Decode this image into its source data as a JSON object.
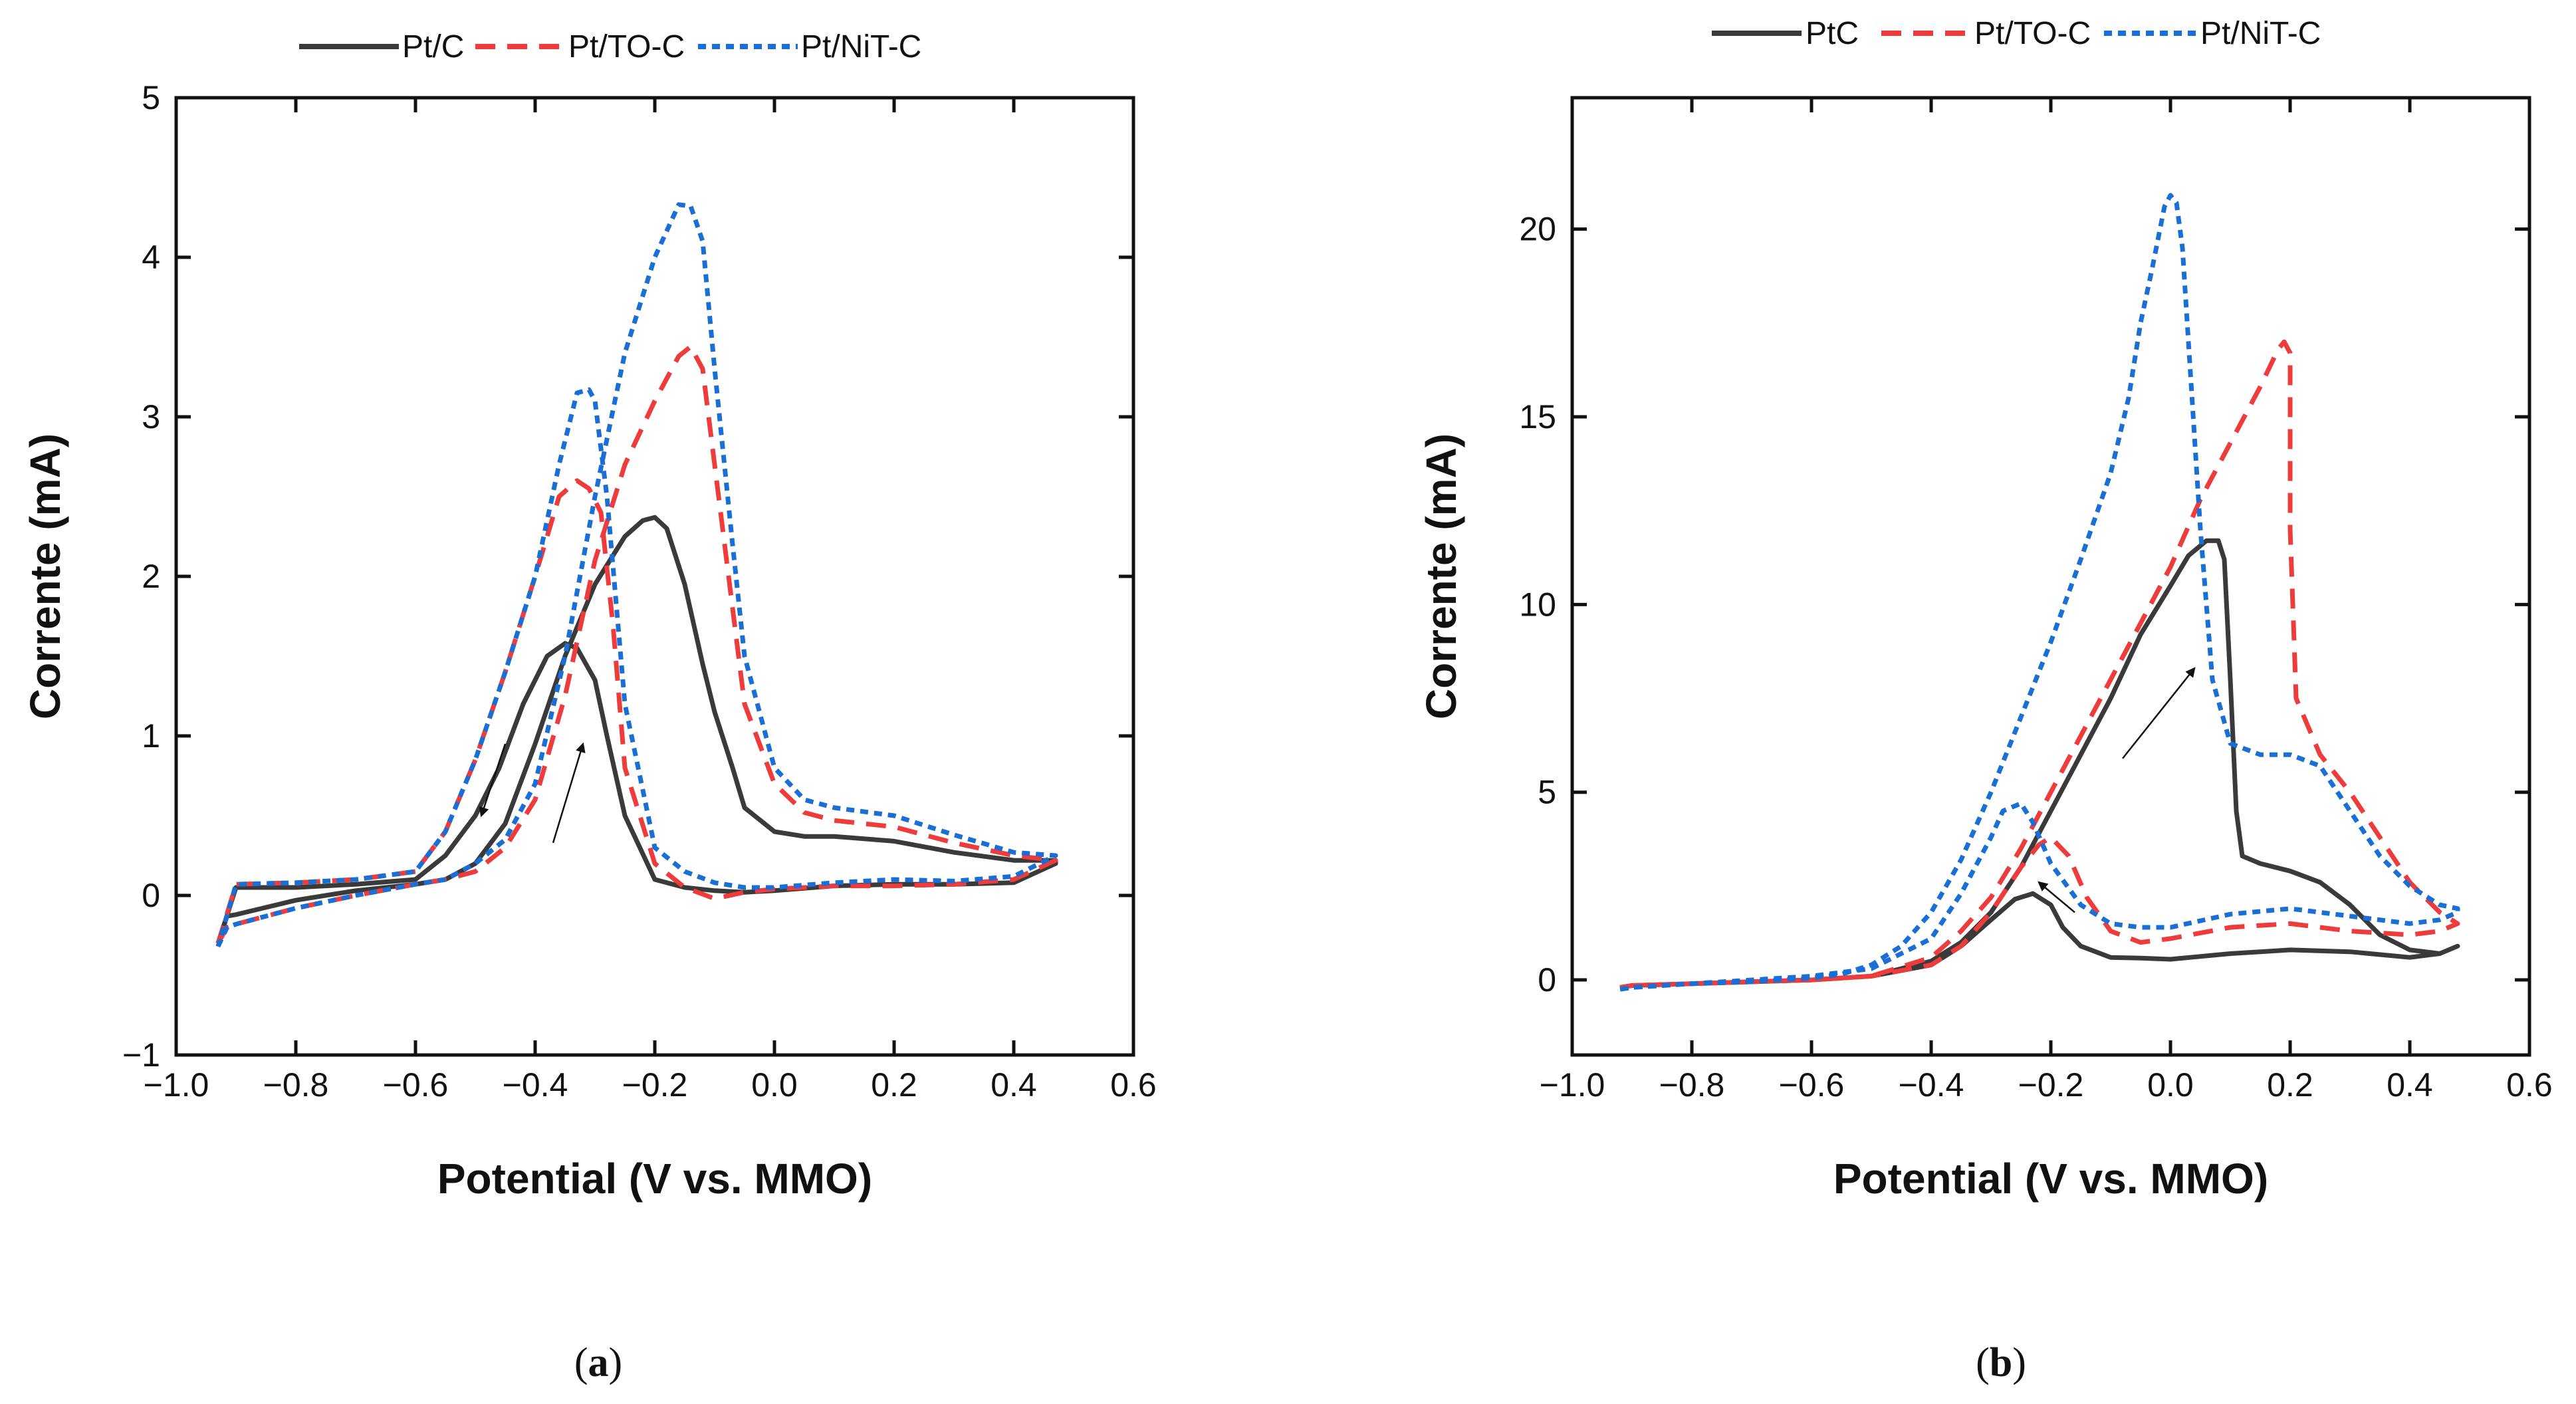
{
  "chart_data": [
    {
      "panel": "(a)",
      "panel_letter": "a",
      "type": "line",
      "title": "",
      "xlabel": "Potential (V vs. MMO)",
      "ylabel": "Corrente (mA)",
      "xlim": [
        -1.0,
        0.6
      ],
      "ylim": [
        -1,
        5
      ],
      "xticks": [
        -1.0,
        -0.8,
        -0.6,
        -0.4,
        -0.2,
        0.0,
        0.2,
        0.4,
        0.6
      ],
      "xtick_labels": [
        "−1.0",
        "−0.8",
        "−0.6",
        "−0.4",
        "−0.2",
        "0.0",
        "0.2",
        "0.4",
        "0.6"
      ],
      "yticks": [
        -1,
        0,
        1,
        2,
        3,
        4,
        5
      ],
      "ytick_labels": [
        "−1",
        "0",
        "1",
        "2",
        "3",
        "4",
        "5"
      ],
      "legend_position": "top",
      "series": [
        {
          "name": "Pt/C",
          "color": "#3a3a3a",
          "dash": "solid",
          "x": [
            -0.93,
            -0.915,
            -0.9,
            -0.8,
            -0.7,
            -0.6,
            -0.55,
            -0.5,
            -0.45,
            -0.4,
            -0.35,
            -0.3,
            -0.25,
            -0.22,
            -0.2,
            -0.18,
            -0.15,
            -0.12,
            -0.1,
            -0.07,
            -0.05,
            0.0,
            0.05,
            0.1,
            0.2,
            0.3,
            0.4,
            0.47,
            0.47,
            0.4,
            0.3,
            0.2,
            0.1,
            0.0,
            -0.05,
            -0.1,
            -0.15,
            -0.2,
            -0.25,
            -0.28,
            -0.3,
            -0.33,
            -0.35,
            -0.38,
            -0.42,
            -0.46,
            -0.5,
            -0.55,
            -0.6,
            -0.7,
            -0.8,
            -0.9,
            -0.93
          ],
          "y": [
            -0.3,
            -0.13,
            -0.12,
            -0.03,
            0.03,
            0.07,
            0.1,
            0.2,
            0.45,
            0.95,
            1.5,
            1.95,
            2.25,
            2.35,
            2.37,
            2.3,
            1.95,
            1.45,
            1.15,
            0.8,
            0.55,
            0.4,
            0.37,
            0.37,
            0.34,
            0.27,
            0.22,
            0.22,
            0.2,
            0.08,
            0.07,
            0.07,
            0.06,
            0.03,
            0.02,
            0.03,
            0.05,
            0.1,
            0.5,
            1.0,
            1.35,
            1.55,
            1.58,
            1.5,
            1.2,
            0.8,
            0.5,
            0.25,
            0.1,
            0.07,
            0.05,
            0.05,
            -0.3
          ]
        },
        {
          "name": "Pt/TO-C",
          "color": "#ee3b3b",
          "dash": "long",
          "x": [
            -0.93,
            -0.915,
            -0.9,
            -0.8,
            -0.7,
            -0.6,
            -0.55,
            -0.5,
            -0.45,
            -0.4,
            -0.35,
            -0.3,
            -0.25,
            -0.2,
            -0.16,
            -0.14,
            -0.12,
            -0.1,
            -0.07,
            -0.05,
            0.0,
            0.05,
            0.1,
            0.2,
            0.3,
            0.4,
            0.47,
            0.47,
            0.4,
            0.3,
            0.2,
            0.1,
            0.0,
            -0.05,
            -0.1,
            -0.15,
            -0.2,
            -0.25,
            -0.27,
            -0.29,
            -0.31,
            -0.33,
            -0.36,
            -0.4,
            -0.45,
            -0.5,
            -0.55,
            -0.6,
            -0.7,
            -0.8,
            -0.9,
            -0.93
          ],
          "y": [
            -0.3,
            -0.2,
            -0.18,
            -0.08,
            0.0,
            0.07,
            0.1,
            0.15,
            0.3,
            0.6,
            1.25,
            2.1,
            2.7,
            3.1,
            3.38,
            3.44,
            3.3,
            2.7,
            1.8,
            1.2,
            0.7,
            0.52,
            0.47,
            0.43,
            0.33,
            0.25,
            0.22,
            0.22,
            0.1,
            0.07,
            0.06,
            0.06,
            0.04,
            0.02,
            -0.02,
            0.05,
            0.2,
            0.8,
            1.7,
            2.4,
            2.55,
            2.6,
            2.5,
            2.0,
            1.4,
            0.85,
            0.4,
            0.15,
            0.1,
            0.08,
            0.07,
            -0.3
          ]
        },
        {
          "name": "Pt/NiT-C",
          "color": "#1a6fd6",
          "dash": "short",
          "x": [
            -0.93,
            -0.915,
            -0.9,
            -0.8,
            -0.7,
            -0.6,
            -0.55,
            -0.5,
            -0.45,
            -0.4,
            -0.35,
            -0.3,
            -0.25,
            -0.2,
            -0.16,
            -0.14,
            -0.12,
            -0.1,
            -0.07,
            -0.05,
            0.0,
            0.05,
            0.1,
            0.2,
            0.3,
            0.4,
            0.47,
            0.47,
            0.4,
            0.3,
            0.2,
            0.1,
            0.0,
            -0.05,
            -0.1,
            -0.15,
            -0.2,
            -0.25,
            -0.28,
            -0.3,
            -0.31,
            -0.33,
            -0.36,
            -0.4,
            -0.45,
            -0.5,
            -0.55,
            -0.6,
            -0.7,
            -0.8,
            -0.9,
            -0.93
          ],
          "y": [
            -0.32,
            -0.2,
            -0.18,
            -0.08,
            0.0,
            0.07,
            0.1,
            0.2,
            0.35,
            0.7,
            1.5,
            2.5,
            3.4,
            4.0,
            4.33,
            4.32,
            4.1,
            3.3,
            2.2,
            1.5,
            0.8,
            0.6,
            0.55,
            0.5,
            0.38,
            0.27,
            0.25,
            0.25,
            0.12,
            0.09,
            0.1,
            0.08,
            0.05,
            0.05,
            0.08,
            0.15,
            0.3,
            1.2,
            2.5,
            3.1,
            3.17,
            3.15,
            2.7,
            2.0,
            1.4,
            0.85,
            0.4,
            0.15,
            0.1,
            0.08,
            0.07,
            -0.32
          ]
        }
      ],
      "arrows": [
        {
          "direction": "forward",
          "from": [
            -0.37,
            0.33
          ],
          "to": [
            -0.32,
            0.95
          ]
        },
        {
          "direction": "reverse",
          "from": [
            -0.45,
            0.95
          ],
          "to": [
            -0.49,
            0.5
          ]
        }
      ]
    },
    {
      "panel": "(b)",
      "panel_letter": "b",
      "type": "line",
      "title": "",
      "xlabel": "Potential (V vs. MMO)",
      "ylabel": "Corrente (mA)",
      "xlim": [
        -1.0,
        0.6
      ],
      "ylim": [
        -2,
        23.5
      ],
      "xticks": [
        -1.0,
        -0.8,
        -0.6,
        -0.4,
        -0.2,
        0.0,
        0.2,
        0.4,
        0.6
      ],
      "xtick_labels": [
        "−1.0",
        "−0.8",
        "−0.6",
        "−0.4",
        "−0.2",
        "0.0",
        "0.2",
        "0.4",
        "0.6"
      ],
      "yticks": [
        0,
        5,
        10,
        15,
        20
      ],
      "ytick_labels": [
        "0",
        "5",
        "10",
        "15",
        "20"
      ],
      "legend_position": "top",
      "series": [
        {
          "name": "PtC",
          "color": "#3a3a3a",
          "dash": "solid",
          "x": [
            -0.92,
            -0.9,
            -0.8,
            -0.7,
            -0.6,
            -0.5,
            -0.4,
            -0.35,
            -0.3,
            -0.25,
            -0.2,
            -0.15,
            -0.1,
            -0.05,
            0.0,
            0.03,
            0.06,
            0.08,
            0.09,
            0.1,
            0.11,
            0.12,
            0.15,
            0.2,
            0.25,
            0.3,
            0.35,
            0.4,
            0.45,
            0.48,
            0.48,
            0.45,
            0.4,
            0.3,
            0.2,
            0.1,
            0.0,
            -0.05,
            -0.1,
            -0.15,
            -0.18,
            -0.2,
            -0.23,
            -0.26,
            -0.3,
            -0.35,
            -0.4,
            -0.5,
            -0.6,
            -0.7,
            -0.8,
            -0.9,
            -0.92
          ],
          "y": [
            -0.2,
            -0.15,
            -0.1,
            -0.05,
            0.0,
            0.1,
            0.5,
            1.0,
            1.8,
            3.0,
            4.5,
            6.0,
            7.5,
            9.2,
            10.5,
            11.3,
            11.7,
            11.7,
            11.2,
            8.0,
            4.5,
            3.3,
            3.1,
            2.9,
            2.6,
            2.0,
            1.2,
            0.8,
            0.7,
            0.9,
            0.9,
            0.7,
            0.6,
            0.75,
            0.8,
            0.7,
            0.55,
            0.58,
            0.6,
            0.9,
            1.4,
            2.0,
            2.3,
            2.15,
            1.6,
            0.9,
            0.4,
            0.1,
            0.0,
            -0.05,
            -0.1,
            -0.15,
            -0.2
          ]
        },
        {
          "name": "Pt/TO-C",
          "color": "#ee3b3b",
          "dash": "long",
          "x": [
            -0.92,
            -0.9,
            -0.8,
            -0.7,
            -0.6,
            -0.5,
            -0.4,
            -0.35,
            -0.3,
            -0.25,
            -0.2,
            -0.15,
            -0.1,
            -0.05,
            0.0,
            0.05,
            0.1,
            0.15,
            0.18,
            0.19,
            0.2,
            0.2,
            0.21,
            0.25,
            0.3,
            0.35,
            0.4,
            0.45,
            0.48,
            0.48,
            0.45,
            0.4,
            0.3,
            0.2,
            0.1,
            0.0,
            -0.05,
            -0.1,
            -0.14,
            -0.17,
            -0.2,
            -0.22,
            -0.25,
            -0.3,
            -0.35,
            -0.4,
            -0.5,
            -0.6,
            -0.7,
            -0.8,
            -0.9,
            -0.92
          ],
          "y": [
            -0.2,
            -0.15,
            -0.1,
            -0.05,
            0.0,
            0.1,
            0.6,
            1.3,
            2.2,
            3.5,
            5.0,
            6.5,
            8.0,
            9.5,
            11.0,
            12.8,
            14.3,
            15.8,
            16.8,
            17.0,
            16.7,
            12.0,
            7.5,
            6.0,
            5.0,
            3.8,
            2.6,
            1.8,
            1.5,
            1.5,
            1.3,
            1.2,
            1.3,
            1.5,
            1.4,
            1.1,
            1.0,
            1.3,
            2.2,
            3.3,
            3.8,
            3.6,
            3.0,
            1.8,
            0.9,
            0.4,
            0.1,
            0.0,
            -0.05,
            -0.1,
            -0.15,
            -0.2
          ]
        },
        {
          "name": "Pt/NiT-C",
          "color": "#1a6fd6",
          "dash": "short",
          "x": [
            -0.92,
            -0.9,
            -0.8,
            -0.7,
            -0.6,
            -0.55,
            -0.5,
            -0.45,
            -0.4,
            -0.35,
            -0.3,
            -0.25,
            -0.2,
            -0.15,
            -0.1,
            -0.07,
            -0.05,
            -0.03,
            -0.01,
            0.0,
            0.01,
            0.02,
            0.03,
            0.05,
            0.07,
            0.1,
            0.15,
            0.2,
            0.25,
            0.3,
            0.35,
            0.4,
            0.45,
            0.48,
            0.48,
            0.45,
            0.4,
            0.3,
            0.2,
            0.1,
            0.0,
            -0.05,
            -0.1,
            -0.15,
            -0.2,
            -0.23,
            -0.25,
            -0.28,
            -0.3,
            -0.35,
            -0.4,
            -0.5,
            -0.6,
            -0.7,
            -0.8,
            -0.9,
            -0.92
          ],
          "y": [
            -0.25,
            -0.2,
            -0.1,
            -0.05,
            0.05,
            0.15,
            0.4,
            0.9,
            1.8,
            3.2,
            5.0,
            7.0,
            9.0,
            11.2,
            13.5,
            15.5,
            17.5,
            19.0,
            20.6,
            20.9,
            20.7,
            19.5,
            17.0,
            12.0,
            8.0,
            6.3,
            6.0,
            6.0,
            5.7,
            4.5,
            3.3,
            2.5,
            2.0,
            1.9,
            1.8,
            1.6,
            1.5,
            1.7,
            1.9,
            1.75,
            1.4,
            1.4,
            1.5,
            2.0,
            3.1,
            4.2,
            4.7,
            4.5,
            3.8,
            2.3,
            1.1,
            0.3,
            0.1,
            0.0,
            -0.1,
            -0.2,
            -0.25
          ]
        }
      ],
      "arrows": [
        {
          "direction": "forward",
          "from": [
            -0.08,
            5.9
          ],
          "to": [
            0.04,
            8.3
          ]
        },
        {
          "direction": "reverse",
          "from": [
            -0.16,
            1.8
          ],
          "to": [
            -0.22,
            2.6
          ]
        }
      ]
    }
  ]
}
